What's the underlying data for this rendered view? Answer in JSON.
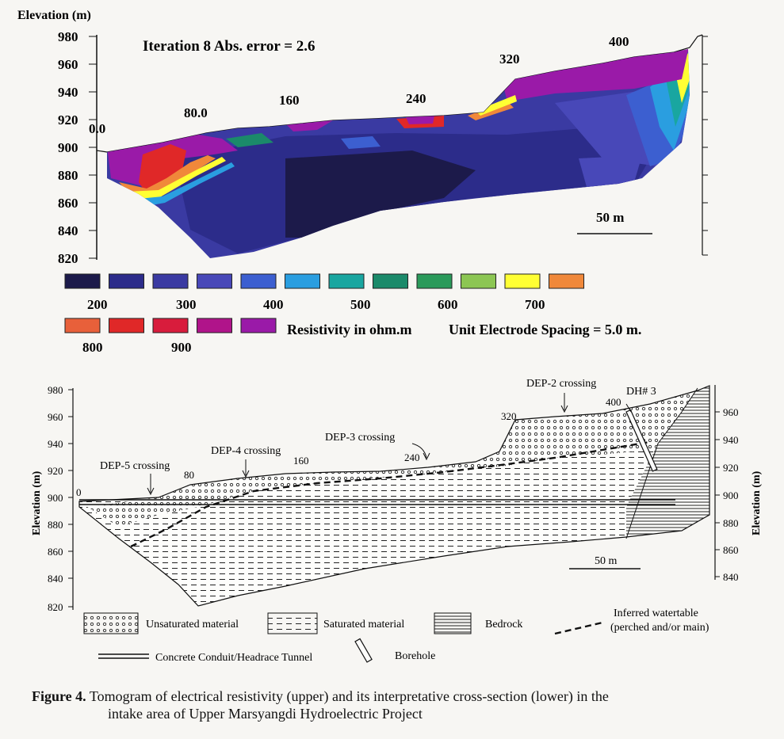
{
  "upper": {
    "elevation_label": "Elevation (m)",
    "y_ticks": [
      "980",
      "960",
      "940",
      "920",
      "900",
      "880",
      "860",
      "840",
      "820"
    ],
    "iteration_label": "Iteration 8 Abs. error = 2.6",
    "distance_labels": [
      "0.0",
      "80.0",
      "160",
      "240",
      "320",
      "400"
    ],
    "scale_label": "50 m",
    "legend_row1_labels": [
      "200",
      "300",
      "400",
      "500",
      "600",
      "700"
    ],
    "legend_row2_labels": [
      "800",
      "900"
    ],
    "resistivity_label": "Resistivity in ohm.m",
    "spacing_label": "Unit Electrode Spacing = 5.0 m.",
    "legend_colors_row1": [
      "#1c1a4a",
      "#2c2c8a",
      "#3a3aa2",
      "#4848b8",
      "#3c5fd0",
      "#2a9ee0",
      "#19a6a0",
      "#1b8a6a",
      "#2a9a5a",
      "#8cc653",
      "#ffff33",
      "#f0883a"
    ],
    "legend_colors_row2": [
      "#e8603a",
      "#e02828",
      "#d81c3c",
      "#b0148a",
      "#9a1aa8"
    ]
  },
  "lower": {
    "y_label_left": "Elevation (m)",
    "y_label_right": "Elevation (m)",
    "y_ticks_left": [
      "980",
      "960",
      "940",
      "920",
      "900",
      "880",
      "860",
      "840",
      "820"
    ],
    "y_ticks_right": [
      "960",
      "940",
      "920",
      "900",
      "880",
      "860",
      "840"
    ],
    "distance_labels": [
      "0",
      "80",
      "160",
      "240",
      "320",
      "400"
    ],
    "crossings": [
      "DEP-5 crossing",
      "DEP-4 crossing",
      "DEP-3 crossing",
      "DEP-2 crossing"
    ],
    "borehole_tag": "DH# 3",
    "scale_label": "50 m",
    "legend": {
      "unsaturated": "Unsaturated material",
      "saturated": "Saturated material",
      "bedrock": "Bedrock",
      "watertable_1": "Inferred watertable",
      "watertable_2": "(perched and/or main)",
      "tunnel": "Concrete Conduit/Headrace Tunnel",
      "borehole": "Borehole"
    }
  },
  "caption": {
    "figure": "Figure 4.",
    "line1": "Tomogram of electrical resistivity (upper) and its interpretative cross-section (lower) in the",
    "line2": "intake area of Upper Marsyangdi Hydroelectric Project"
  }
}
